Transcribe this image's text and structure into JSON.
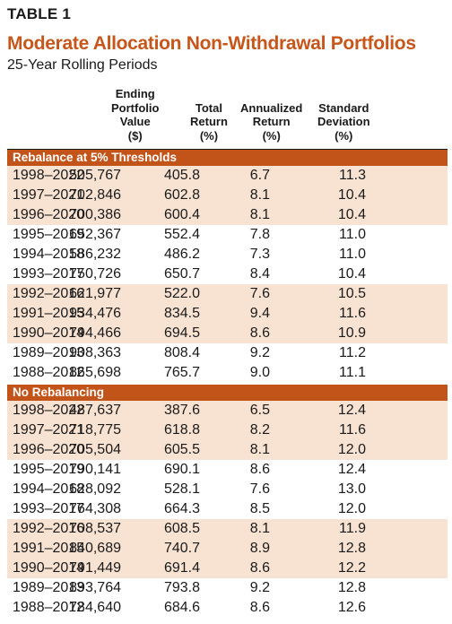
{
  "table_label": "TABLE 1",
  "title": "Moderate Allocation Non-Withdrawal Portfolios",
  "subtitle": "25-Year Rolling Periods",
  "headers": {
    "value": [
      "Ending",
      "Portfolio",
      "Value",
      "($)"
    ],
    "total": [
      "Total",
      "Return",
      "(%)"
    ],
    "annualized": [
      "Annualized",
      "Return",
      "(%)"
    ],
    "std": [
      "Standard",
      "Deviation",
      "(%)"
    ]
  },
  "sections": [
    {
      "title": "Rebalance at 5% Thresholds",
      "rows": [
        {
          "period": "1998–2022",
          "value": "505,767",
          "total": "405.8",
          "annualized": "6.7",
          "std": "11.3"
        },
        {
          "period": "1997–2021",
          "value": "702,846",
          "total": "602.8",
          "annualized": "8.1",
          "std": "10.4"
        },
        {
          "period": "1996–2020",
          "value": "700,386",
          "total": "600.4",
          "annualized": "8.1",
          "std": "10.4"
        },
        {
          "period": "1995–2019",
          "value": "652,367",
          "total": "552.4",
          "annualized": "7.8",
          "std": "11.0"
        },
        {
          "period": "1994–2018",
          "value": "586,232",
          "total": "486.2",
          "annualized": "7.3",
          "std": "11.0"
        },
        {
          "period": "1993–2017",
          "value": "750,726",
          "total": "650.7",
          "annualized": "8.4",
          "std": "10.4"
        },
        {
          "period": "1992–2016",
          "value": "621,977",
          "total": "522.0",
          "annualized": "7.6",
          "std": "10.5"
        },
        {
          "period": "1991–2015",
          "value": "934,476",
          "total": "834.5",
          "annualized": "9.4",
          "std": "11.6"
        },
        {
          "period": "1990–2014",
          "value": "794,466",
          "total": "694.5",
          "annualized": "8.6",
          "std": "10.9"
        },
        {
          "period": "1989–2013",
          "value": "908,363",
          "total": "808.4",
          "annualized": "9.2",
          "std": "11.2"
        },
        {
          "period": "1988–2012",
          "value": "865,698",
          "total": "765.7",
          "annualized": "9.0",
          "std": "11.1"
        }
      ]
    },
    {
      "title": "No Rebalancing",
      "rows": [
        {
          "period": "1998–2022",
          "value": "487,637",
          "total": "387.6",
          "annualized": "6.5",
          "std": "12.4"
        },
        {
          "period": "1997–2021",
          "value": "718,775",
          "total": "618.8",
          "annualized": "8.2",
          "std": "11.6"
        },
        {
          "period": "1996–2020",
          "value": "705,504",
          "total": "605.5",
          "annualized": "8.1",
          "std": "12.0"
        },
        {
          "period": "1995–2019",
          "value": "790,141",
          "total": "690.1",
          "annualized": "8.6",
          "std": "12.4"
        },
        {
          "period": "1994–2018",
          "value": "628,092",
          "total": "528.1",
          "annualized": "7.6",
          "std": "13.0"
        },
        {
          "period": "1993–2017",
          "value": "764,308",
          "total": "664.3",
          "annualized": "8.5",
          "std": "12.0"
        },
        {
          "period": "1992–2016",
          "value": "708,537",
          "total": "608.5",
          "annualized": "8.1",
          "std": "11.9"
        },
        {
          "period": "1991–2015",
          "value": "840,689",
          "total": "740.7",
          "annualized": "8.9",
          "std": "12.8"
        },
        {
          "period": "1990–2014",
          "value": "791,449",
          "total": "691.4",
          "annualized": "8.6",
          "std": "12.2"
        },
        {
          "period": "1989–2013",
          "value": "893,764",
          "total": "793.8",
          "annualized": "9.2",
          "std": "12.8"
        },
        {
          "period": "1988–2012",
          "value": "784,640",
          "total": "684.6",
          "annualized": "8.6",
          "std": "12.6"
        }
      ]
    }
  ],
  "colors": {
    "accent": "#c6561b",
    "section_bar": "#c2541a",
    "row_shade": "#f8e3d3"
  }
}
